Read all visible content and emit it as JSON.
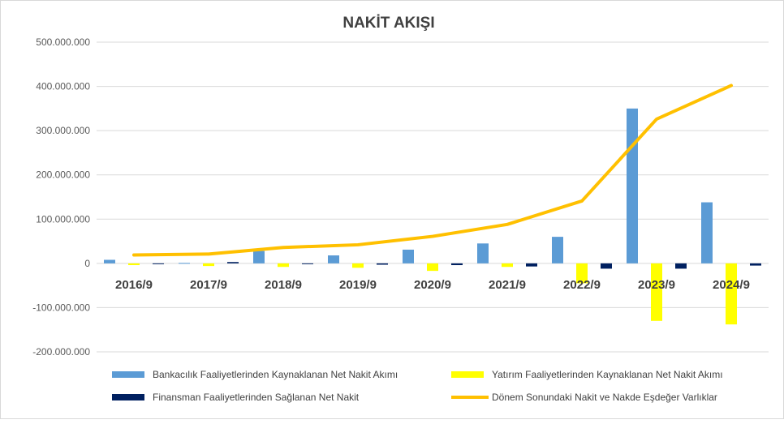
{
  "chart_data": {
    "type": "bar",
    "title": "NAKİT AKIŞI",
    "categories": [
      "2016/9",
      "2017/9",
      "2018/9",
      "2019/9",
      "2020/9",
      "2021/9",
      "2022/9",
      "2023/9",
      "2024/9"
    ],
    "ylim": [
      -200000000,
      500000000
    ],
    "yticks": [
      500000000,
      400000000,
      300000000,
      200000000,
      100000000,
      0,
      -100000000,
      -200000000
    ],
    "ytick_labels": [
      "500.000.000",
      "400.000.000",
      "300.000.000",
      "200.000.000",
      "100.000.000",
      "0",
      "-100.000.000",
      "-200.000.000"
    ],
    "grid": true,
    "legend_position": "bottom",
    "series": [
      {
        "name": "Bankacılık Faaliyetlerinden Kaynaklanan Net Nakit Akımı",
        "kind": "bar",
        "color": "#5b9bd5",
        "values": [
          8000000,
          1000000,
          28000000,
          18000000,
          31000000,
          45000000,
          60000000,
          350000000,
          138000000
        ]
      },
      {
        "name": "Yatırım Faaliyetlerinden Kaynaklanan Net Nakit Akımı",
        "kind": "bar",
        "color": "#ffff00",
        "values": [
          -4000000,
          -6000000,
          -8000000,
          -10000000,
          -17000000,
          -8000000,
          -45000000,
          -130000000,
          -138000000
        ]
      },
      {
        "name": "Finansman Faaliyetlerinden Sağlanan Net Nakit",
        "kind": "bar",
        "color": "#002060",
        "values": [
          -1000000,
          3000000,
          -1000000,
          -3000000,
          -4000000,
          -7000000,
          -12000000,
          -12000000,
          -5000000
        ]
      },
      {
        "name": "Dönem Sonundaki Nakit ve Nakde Eşdeğer Varlıklar",
        "kind": "line",
        "color": "#ffc000",
        "values": [
          19000000,
          21000000,
          36000000,
          42000000,
          61000000,
          88000000,
          141000000,
          326000000,
          402000000
        ]
      }
    ]
  }
}
